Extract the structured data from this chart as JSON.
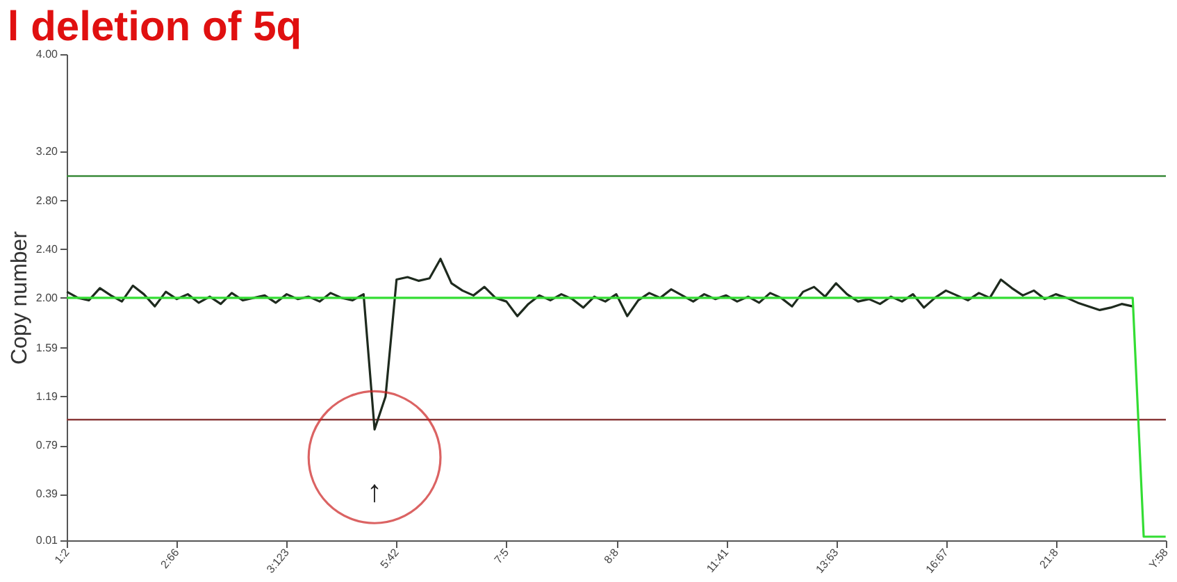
{
  "chart_data": {
    "type": "line",
    "title": "l deletion of 5q",
    "ylabel": "Copy number",
    "categories": [
      "1:2",
      null,
      null,
      null,
      null,
      null,
      null,
      null,
      null,
      null,
      "2:66",
      null,
      null,
      null,
      null,
      null,
      null,
      null,
      null,
      null,
      "3:123",
      null,
      null,
      null,
      null,
      null,
      null,
      null,
      null,
      null,
      "5:42",
      null,
      null,
      null,
      null,
      null,
      null,
      null,
      null,
      null,
      "7:5",
      null,
      null,
      null,
      null,
      null,
      null,
      null,
      null,
      null,
      "8:8",
      null,
      null,
      null,
      null,
      null,
      null,
      null,
      null,
      null,
      "11:41",
      null,
      null,
      null,
      null,
      null,
      null,
      null,
      null,
      null,
      "13:63",
      null,
      null,
      null,
      null,
      null,
      null,
      null,
      null,
      null,
      "16:67",
      null,
      null,
      null,
      null,
      null,
      null,
      null,
      null,
      null,
      "21:8",
      null,
      null,
      null,
      null,
      null,
      null,
      null,
      null,
      null,
      "Y:58"
    ],
    "ylim": [
      0.01,
      4.0
    ],
    "yticks": [
      0.01,
      0.39,
      0.79,
      1.19,
      1.59,
      {
        "value": 2.0,
        "label": "2.00"
      },
      {
        "value": 2.4,
        "label": "2.40"
      },
      {
        "value": 2.8,
        "label": "2.80"
      },
      {
        "value": 3.2,
        "label": "3.20"
      },
      {
        "value": 4.0,
        "label": "4.00"
      }
    ],
    "grid": false,
    "series": [
      {
        "color": "#1e2a1e",
        "values": [
          2.05,
          2.0,
          1.98,
          2.08,
          2.02,
          1.97,
          2.1,
          2.03,
          1.93,
          2.05,
          1.99,
          2.03,
          1.96,
          2.01,
          1.95,
          2.04,
          1.98,
          2.0,
          2.02,
          1.96,
          2.03,
          1.99,
          2.01,
          1.97,
          2.04,
          2.0,
          1.98,
          2.03,
          0.92,
          1.19,
          2.15,
          2.17,
          2.14,
          2.16,
          2.32,
          2.12,
          2.06,
          2.02,
          2.09,
          2.0,
          1.97,
          1.85,
          1.95,
          2.02,
          1.98,
          2.03,
          1.99,
          1.92,
          2.01,
          1.97,
          2.03,
          1.85,
          1.98,
          2.04,
          2.0,
          2.07,
          2.02,
          1.97,
          2.03,
          1.99,
          2.02,
          1.97,
          2.01,
          1.96,
          2.04,
          2.0,
          1.93,
          2.05,
          2.09,
          2.01,
          2.12,
          2.03,
          1.97,
          1.99,
          1.95,
          2.01,
          1.97,
          2.03,
          1.92,
          2.0,
          2.06,
          2.02,
          1.98,
          2.04,
          2.0,
          2.15,
          2.08,
          2.02,
          2.06,
          1.99,
          2.03,
          2.0,
          1.96,
          1.93,
          1.9,
          1.92,
          1.95,
          1.93,
          null,
          null,
          null
        ]
      },
      {
        "color": "#33dd33",
        "values": [
          2.0,
          2.0,
          2.0,
          2.0,
          2.0,
          2.0,
          2.0,
          2.0,
          2.0,
          2.0,
          2.0,
          2.0,
          2.0,
          2.0,
          2.0,
          2.0,
          2.0,
          2.0,
          2.0,
          2.0,
          2.0,
          2.0,
          2.0,
          2.0,
          2.0,
          2.0,
          2.0,
          2.0,
          2.0,
          2.0,
          2.0,
          2.0,
          2.0,
          2.0,
          2.0,
          2.0,
          2.0,
          2.0,
          2.0,
          2.0,
          2.0,
          2.0,
          2.0,
          2.0,
          2.0,
          2.0,
          2.0,
          2.0,
          2.0,
          2.0,
          2.0,
          2.0,
          2.0,
          2.0,
          2.0,
          2.0,
          2.0,
          2.0,
          2.0,
          2.0,
          2.0,
          2.0,
          2.0,
          2.0,
          2.0,
          2.0,
          2.0,
          2.0,
          2.0,
          2.0,
          2.0,
          2.0,
          2.0,
          2.0,
          2.0,
          2.0,
          2.0,
          2.0,
          2.0,
          2.0,
          2.0,
          2.0,
          2.0,
          2.0,
          2.0,
          2.0,
          2.0,
          2.0,
          2.0,
          2.0,
          2.0,
          2.0,
          2.0,
          2.0,
          2.0,
          2.0,
          2.0,
          2.0,
          0.04,
          0.04,
          0.04
        ]
      }
    ],
    "ref_lines": [
      {
        "axis": "y",
        "value": 3.0,
        "color": "#3a8a3a"
      },
      {
        "axis": "y",
        "value": 1.0,
        "color": "#8b3a3a"
      }
    ],
    "annotations": [
      "↑"
    ]
  }
}
